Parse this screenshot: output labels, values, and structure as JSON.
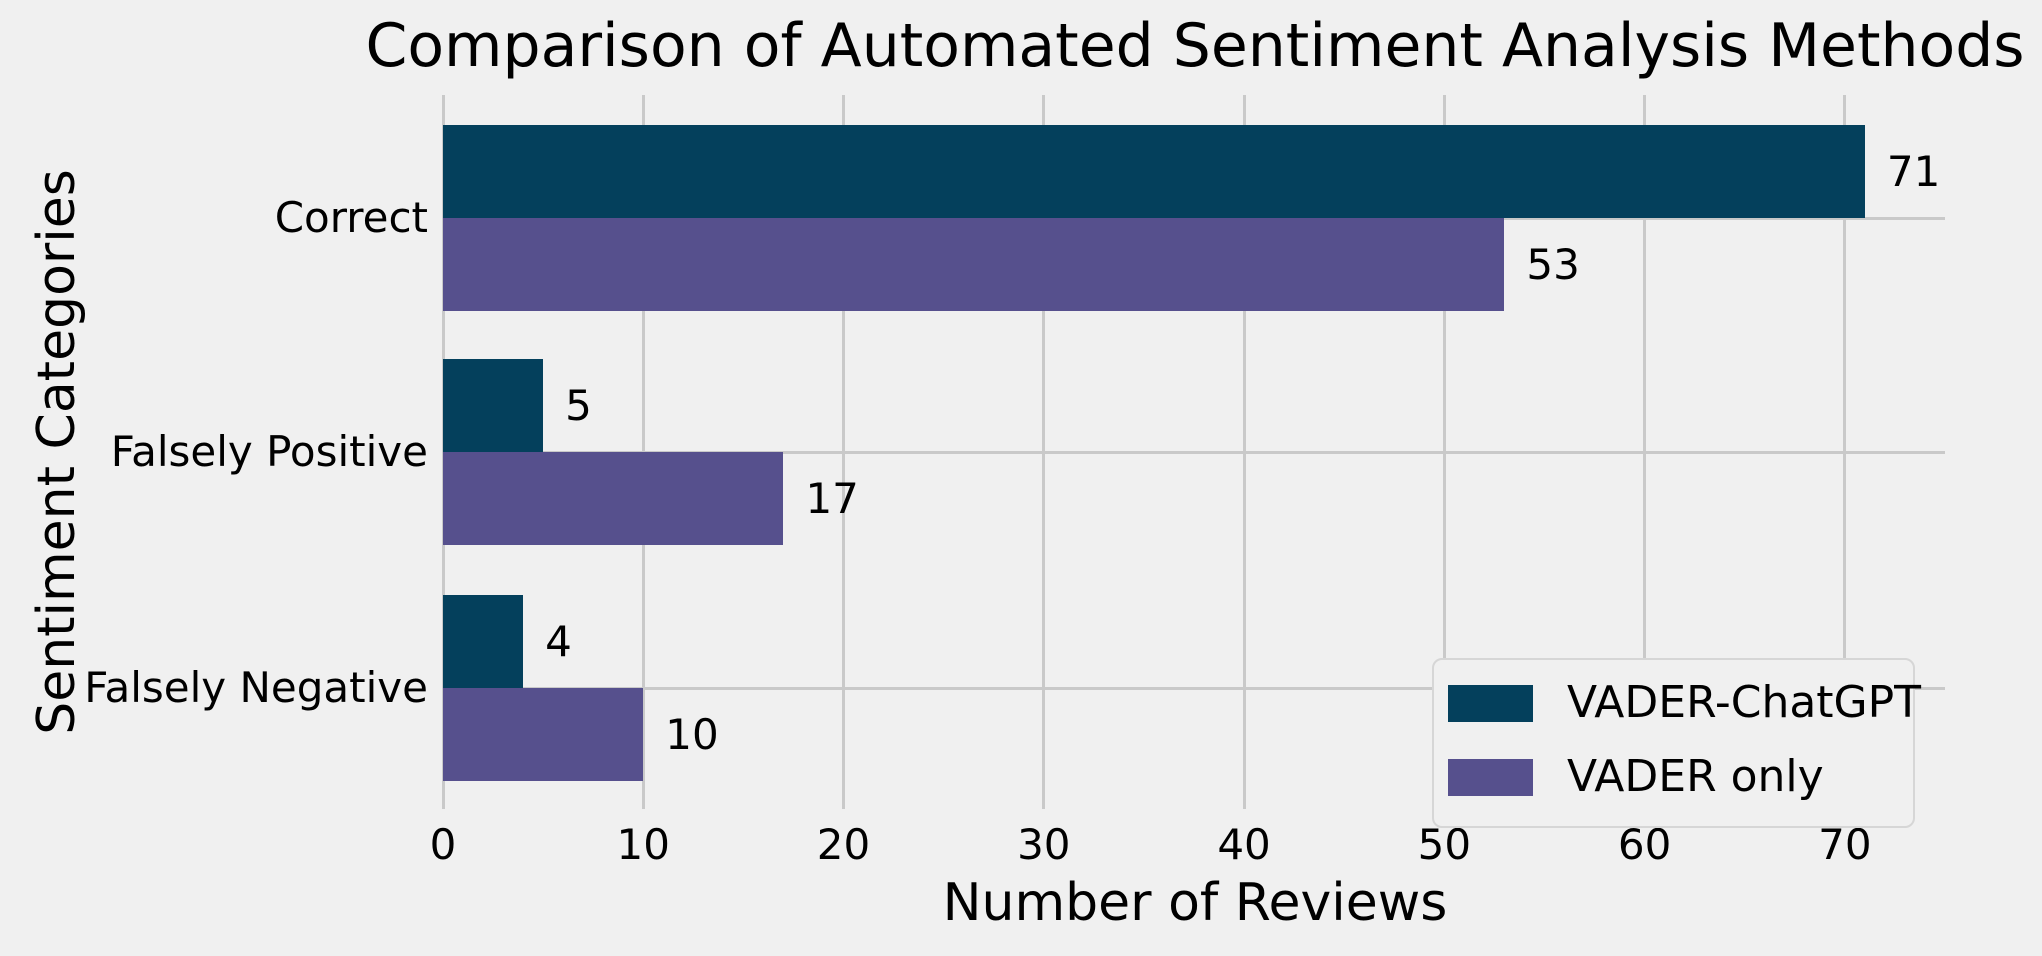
{
  "title": "Comparison of Automated Sentiment Analysis Methods",
  "x_axis": {
    "label": "Number of Reviews",
    "ticks": [
      "0",
      "10",
      "20",
      "30",
      "40",
      "50",
      "60",
      "70"
    ]
  },
  "y_axis": {
    "label": "Sentiment Categories",
    "categories": [
      "Correct",
      "Falsely Positive",
      "Falsely Negative"
    ]
  },
  "legend": {
    "position": "lower right",
    "items": [
      {
        "label": "VADER-ChatGPT",
        "color": "#04405c"
      },
      {
        "label": "VADER only",
        "color": "#56508d"
      }
    ]
  },
  "colors": {
    "background": "#f0f0f0",
    "gridline": "#c9c9c9",
    "text": "#000000"
  },
  "chart_data": {
    "type": "bar",
    "orientation": "horizontal",
    "title": "Comparison of Automated Sentiment Analysis Methods",
    "xlabel": "Number of Reviews",
    "ylabel": "Sentiment Categories",
    "categories": [
      "Correct",
      "Falsely Positive",
      "Falsely Negative"
    ],
    "series": [
      {
        "name": "VADER-ChatGPT",
        "color": "#04405c",
        "values": [
          71,
          5,
          4
        ]
      },
      {
        "name": "VADER only",
        "color": "#56508d",
        "values": [
          53,
          17,
          10
        ]
      }
    ],
    "bar_value_labels": [
      [
        71,
        5,
        4
      ],
      [
        53,
        17,
        10
      ]
    ],
    "xlim": [
      0,
      75
    ],
    "x_ticks": [
      0,
      10,
      20,
      30,
      40,
      50,
      60,
      70
    ],
    "grid": true,
    "legend_position": "lower right"
  }
}
